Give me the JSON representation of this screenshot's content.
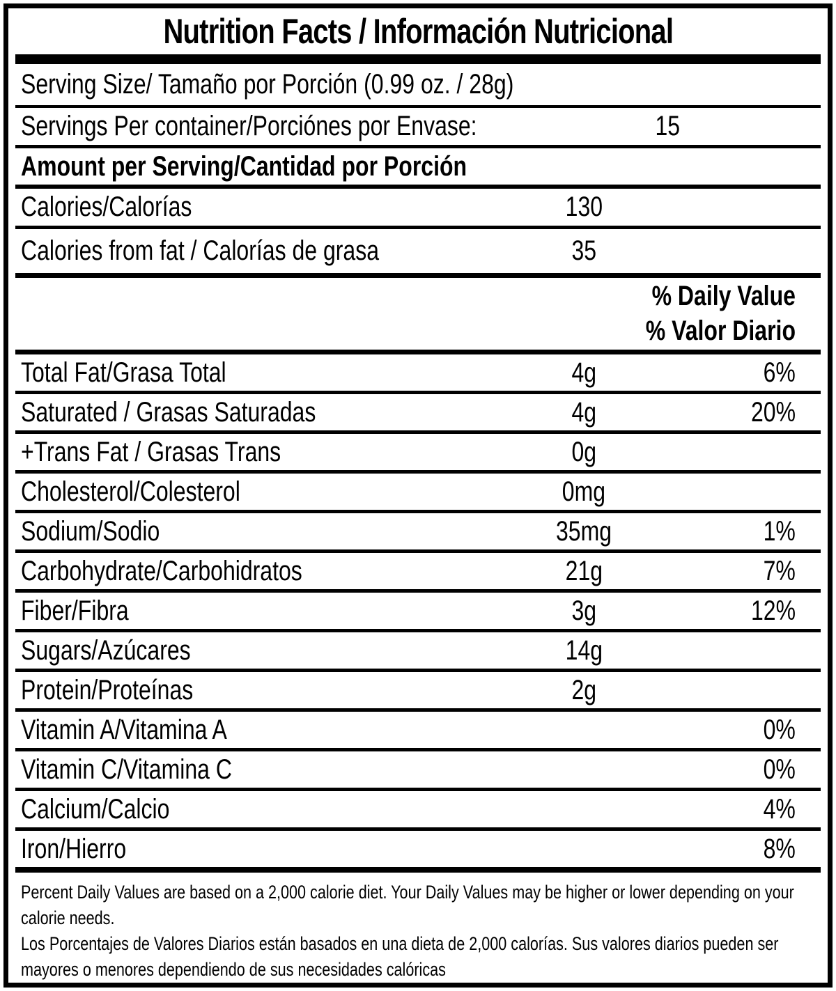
{
  "title": "Nutrition Facts / Información Nutricional",
  "serving_size_label": "Serving Size/ Tamaño por Porción  (0.99 oz. / 28g)",
  "servings_per_container": {
    "label": "Servings Per container/Porciónes por Envase:",
    "value": "15"
  },
  "amount_per_serving_label": "Amount per Serving/Cantidad por Porción",
  "calories": {
    "label": "Calories/Calorías",
    "value": "130"
  },
  "calories_from_fat": {
    "label": "Calories from fat / Calorías de grasa",
    "value": "35"
  },
  "daily_value_header": {
    "en": "% Daily Value",
    "es": "% Valor Diario"
  },
  "nutrients": [
    {
      "label": "Total Fat/Grasa Total",
      "amount": "4g",
      "daily_value": "6%"
    },
    {
      "label": "Saturated / Grasas Saturadas",
      "amount": "4g",
      "daily_value": "20%"
    },
    {
      "label": "+Trans Fat / Grasas Trans",
      "amount": "0g",
      "daily_value": ""
    },
    {
      "label": "Cholesterol/Colesterol",
      "amount": "0mg",
      "daily_value": ""
    },
    {
      "label": "Sodium/Sodio",
      "amount": "35mg",
      "daily_value": "1%"
    },
    {
      "label": "Carbohydrate/Carbohidratos",
      "amount": "21g",
      "daily_value": "7%"
    },
    {
      "label": "Fiber/Fibra",
      "amount": "3g",
      "daily_value": "12%"
    },
    {
      "label": "Sugars/Azúcares",
      "amount": "14g",
      "daily_value": ""
    },
    {
      "label": "Protein/Proteínas",
      "amount": "2g",
      "daily_value": ""
    },
    {
      "label": "Vitamin A/Vitamina A",
      "amount": "",
      "daily_value": "0%"
    },
    {
      "label": "Vitamin C/Vitamina C",
      "amount": "",
      "daily_value": "0%"
    },
    {
      "label": "Calcium/Calcio",
      "amount": "",
      "daily_value": "4%"
    },
    {
      "label": "Iron/Hierro",
      "amount": "",
      "daily_value": "8%"
    }
  ],
  "footnote": {
    "en": "Percent Daily Values are based on a 2,000 calorie diet. Your Daily Values may be higher or lower depending on your calorie needs.",
    "es": "Los Porcentajes de Valores Diarios están basados en una dieta de 2,000 calorías. Sus valores diarios pueden ser mayores o menores dependiendo de sus necesidades calóricas"
  },
  "colors": {
    "text": "#000000",
    "background": "#ffffff",
    "border": "#000000"
  }
}
